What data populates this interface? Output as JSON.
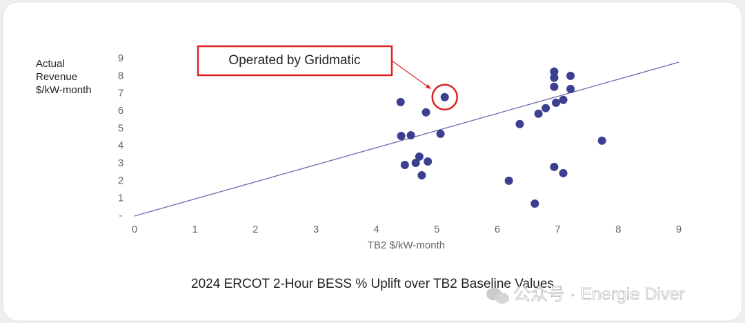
{
  "chart_data": {
    "type": "scatter",
    "ylabel": [
      "Actual",
      "Revenue",
      "$/kW-month"
    ],
    "xlabel": "TB2 $/kW-month",
    "caption": "2024 ERCOT 2-Hour BESS % Uplift over TB2 Baseline Values",
    "color": "#3b3f8f",
    "line_color": "#6a6aae",
    "x": [
      4.4,
      5.13,
      4.82,
      4.41,
      4.57,
      5.06,
      4.71,
      4.65,
      4.85,
      4.47,
      4.75,
      6.94,
      7.21,
      6.94,
      6.94,
      7.21,
      7.09,
      6.97,
      6.8,
      6.68,
      6.37,
      7.73,
      6.94,
      7.09,
      6.19,
      6.62
    ],
    "values": [
      6.52,
      6.8,
      5.93,
      4.58,
      4.62,
      4.7,
      3.4,
      3.04,
      3.12,
      2.92,
      2.33,
      8.26,
      8.02,
      7.91,
      7.39,
      7.27,
      6.64,
      6.48,
      6.17,
      5.85,
      5.26,
      4.31,
      2.81,
      2.45,
      2.02,
      0.71
    ],
    "trendline": {
      "x": [
        0,
        9
      ],
      "y": [
        0,
        8.8
      ]
    },
    "annotation": {
      "text": "Operated by Gridmatic",
      "x": 5.13,
      "y": 6.8
    },
    "xlim": [
      0,
      9
    ],
    "ylim": [
      0,
      9
    ],
    "xticks": [
      0,
      1,
      2,
      3,
      4,
      5,
      6,
      7,
      8,
      9
    ],
    "yticks": [
      {
        "value": 0,
        "label": "-"
      },
      1,
      2,
      3,
      4,
      5,
      6,
      7,
      8,
      9
    ],
    "watermark": "公众号 · Energie Diver"
  }
}
